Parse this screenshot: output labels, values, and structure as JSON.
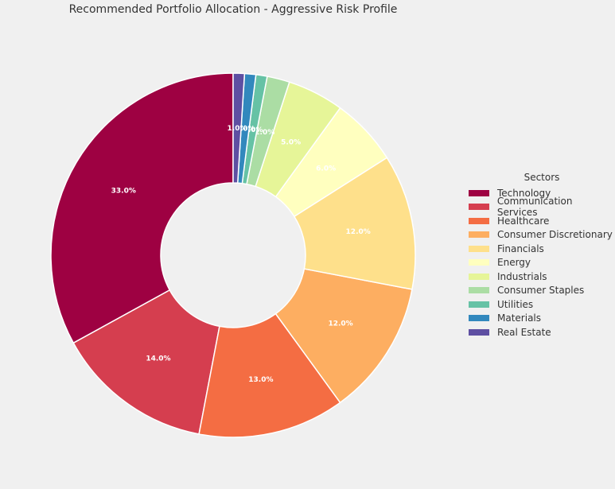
{
  "chart_data": {
    "type": "pie",
    "style": "donut",
    "title": "Recommended Portfolio Allocation - Aggressive Risk Profile",
    "legend_title": "Sectors",
    "legend_position": "right",
    "categories": [
      "Technology",
      "Communication Services",
      "Healthcare",
      "Consumer Discretionary",
      "Financials",
      "Energy",
      "Industrials",
      "Consumer Staples",
      "Utilities",
      "Materials",
      "Real Estate"
    ],
    "values": [
      33.0,
      14.0,
      13.0,
      12.0,
      12.0,
      6.0,
      5.0,
      2.0,
      1.0,
      1.0,
      1.0
    ],
    "labels": [
      "33.0%",
      "14.0%",
      "13.0%",
      "12.0%",
      "12.0%",
      "6.0%",
      "5.0%",
      "2.0%",
      "1.0%",
      "1.0%",
      "1.0%"
    ],
    "colors": [
      "#9e0142",
      "#d53e4f",
      "#f46d43",
      "#fdae61",
      "#fee08b",
      "#ffffbf",
      "#e6f598",
      "#abdda4",
      "#66c2a5",
      "#3288bd",
      "#5e4fa2"
    ]
  }
}
